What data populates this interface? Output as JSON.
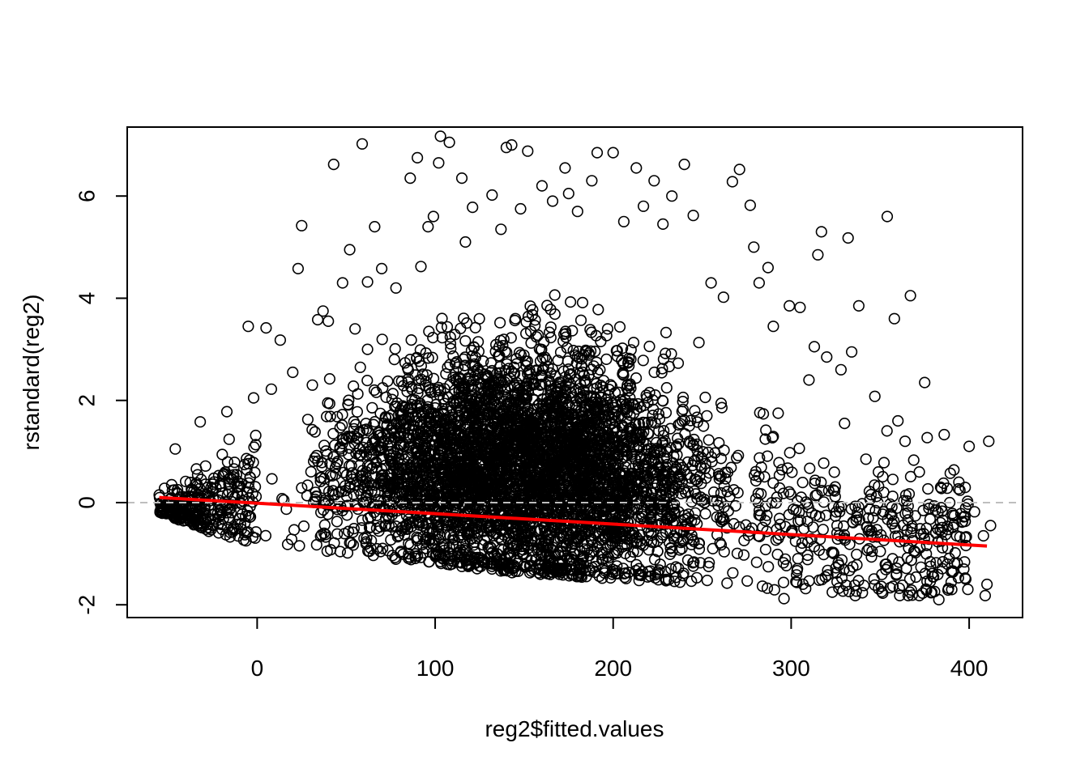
{
  "chart_data": {
    "type": "scatter",
    "title": "",
    "xlabel": "reg2$fitted.values",
    "ylabel": "rstandard(reg2)",
    "xlim": [
      -73,
      430
    ],
    "ylim": [
      -2.25,
      7.35
    ],
    "x_ticks": [
      0,
      100,
      200,
      300,
      400
    ],
    "y_ticks": [
      -2,
      0,
      2,
      4,
      6
    ],
    "x_tick_labels": [
      "0",
      "100",
      "200",
      "300",
      "400"
    ],
    "y_tick_labels": [
      "-2",
      "0",
      "2",
      "4",
      "6"
    ],
    "point_style": "open circle",
    "point_color": "#000000",
    "reference_line": {
      "y": 0,
      "color": "#bebebe",
      "style": "dashed"
    },
    "fit_line": {
      "color": "#ff0000",
      "x": [
        -55,
        410
      ],
      "y": [
        0.1,
        -0.85
      ]
    },
    "density_bands": [
      {
        "x": -55,
        "lower": -0.2,
        "upper": 0.4
      },
      {
        "x": -25,
        "lower": -0.6,
        "upper": 1.2
      },
      {
        "x": 0,
        "lower": -0.8,
        "upper": 1.8
      },
      {
        "x": 50,
        "lower": -1.0,
        "upper": 2.6
      },
      {
        "x": 100,
        "lower": -1.2,
        "upper": 3.4
      },
      {
        "x": 150,
        "lower": -1.4,
        "upper": 3.6
      },
      {
        "x": 200,
        "lower": -1.5,
        "upper": 3.4
      },
      {
        "x": 250,
        "lower": -1.6,
        "upper": 2.6
      },
      {
        "x": 300,
        "lower": -1.8,
        "upper": 1.6
      },
      {
        "x": 350,
        "lower": -1.8,
        "upper": 1.0
      },
      {
        "x": 410,
        "lower": -1.9,
        "upper": 1.2
      }
    ],
    "outliers": [
      [
        -5,
        3.45
      ],
      [
        5,
        3.42
      ],
      [
        13,
        3.18
      ],
      [
        23,
        4.58
      ],
      [
        25,
        5.42
      ],
      [
        43,
        6.62
      ],
      [
        52,
        4.95
      ],
      [
        59,
        7.02
      ],
      [
        66,
        5.4
      ],
      [
        86,
        6.35
      ],
      [
        90,
        6.75
      ],
      [
        96,
        5.4
      ],
      [
        102,
        6.65
      ],
      [
        103,
        7.17
      ],
      [
        108,
        7.05
      ],
      [
        115,
        6.35
      ],
      [
        132,
        6.02
      ],
      [
        140,
        6.95
      ],
      [
        143,
        7.0
      ],
      [
        152,
        6.88
      ],
      [
        160,
        6.2
      ],
      [
        166,
        5.9
      ],
      [
        173,
        6.55
      ],
      [
        188,
        6.3
      ],
      [
        191,
        6.85
      ],
      [
        200,
        6.85
      ],
      [
        213,
        6.55
      ],
      [
        223,
        6.3
      ],
      [
        240,
        6.62
      ],
      [
        267,
        6.28
      ],
      [
        271,
        6.52
      ],
      [
        277,
        5.82
      ],
      [
        299,
        3.85
      ],
      [
        305,
        3.82
      ],
      [
        315,
        4.85
      ],
      [
        317,
        5.3
      ],
      [
        332,
        5.18
      ],
      [
        338,
        3.85
      ],
      [
        347,
        2.08
      ],
      [
        354,
        5.6
      ],
      [
        358,
        3.6
      ],
      [
        364,
        1.2
      ],
      [
        367,
        4.05
      ],
      [
        372,
        0.6
      ],
      [
        375,
        2.35
      ],
      [
        384,
        0.3
      ],
      [
        386,
        1.33
      ],
      [
        393,
        -0.65
      ],
      [
        400,
        1.1
      ],
      [
        403,
        -0.18
      ],
      [
        408,
        -0.65
      ],
      [
        409,
        -1.82
      ],
      [
        410,
        -1.6
      ],
      [
        411,
        1.2
      ],
      [
        412,
        -0.45
      ],
      [
        383,
        -1.9
      ],
      [
        372,
        -1.82
      ],
      [
        361,
        -1.82
      ],
      [
        336,
        -1.82
      ],
      [
        296,
        -1.88
      ],
      [
        360,
        1.6
      ],
      [
        352,
        0.2
      ],
      [
        346,
        -0.3
      ],
      [
        357,
        -1.1
      ],
      [
        380,
        -1.45
      ],
      [
        390,
        -1.35
      ],
      [
        369,
        -0.95
      ],
      [
        342,
        0.85
      ],
      [
        330,
        1.55
      ],
      [
        349,
        0.6
      ],
      [
        310,
        2.4
      ],
      [
        320,
        2.85
      ],
      [
        328,
        2.6
      ],
      [
        334,
        2.95
      ],
      [
        313,
        3.05
      ],
      [
        290,
        3.45
      ],
      [
        282,
        4.3
      ],
      [
        287,
        4.6
      ],
      [
        279,
        5.0
      ],
      [
        262,
        4.02
      ],
      [
        255,
        4.3
      ],
      [
        245,
        5.62
      ],
      [
        228,
        5.45
      ],
      [
        233,
        6.0
      ],
      [
        217,
        5.8
      ],
      [
        206,
        5.5
      ],
      [
        180,
        5.7
      ],
      [
        175,
        6.05
      ],
      [
        148,
        5.75
      ],
      [
        137,
        5.35
      ],
      [
        121,
        5.78
      ],
      [
        117,
        5.1
      ],
      [
        99,
        5.6
      ],
      [
        92,
        4.62
      ],
      [
        78,
        4.2
      ],
      [
        70,
        4.58
      ],
      [
        62,
        4.32
      ],
      [
        48,
        4.3
      ],
      [
        37,
        3.75
      ],
      [
        34,
        3.58
      ],
      [
        40,
        3.55
      ],
      [
        55,
        3.4
      ],
      [
        62,
        3.0
      ],
      [
        31,
        2.3
      ],
      [
        20,
        2.55
      ],
      [
        8,
        2.22
      ],
      [
        -2,
        2.05
      ],
      [
        -17,
        1.78
      ],
      [
        -32,
        1.58
      ],
      [
        -46,
        1.05
      ],
      [
        -48,
        0.35
      ],
      [
        -52,
        0.28
      ],
      [
        -55,
        0.15
      ],
      [
        -50,
        -0.05
      ]
    ]
  }
}
